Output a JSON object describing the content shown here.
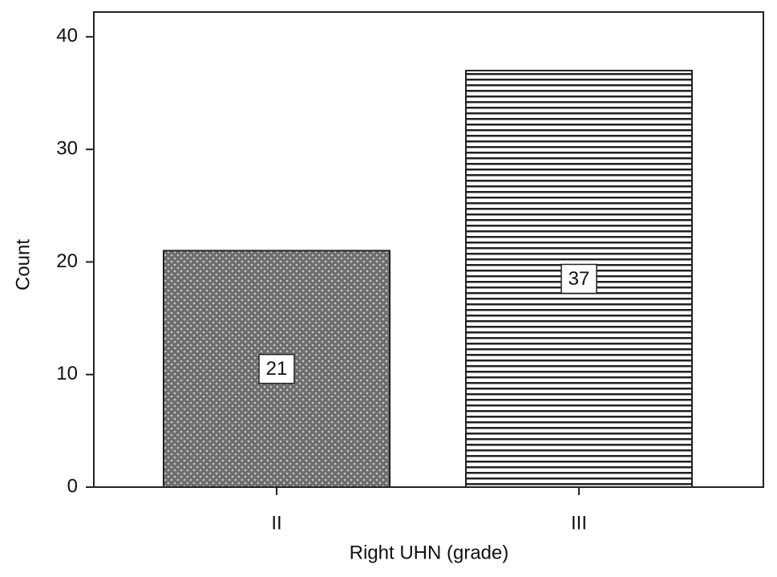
{
  "chart_data": {
    "type": "bar",
    "x_label": "Right UHN (grade)",
    "y_label": "Count",
    "categories": [
      "II",
      "III"
    ],
    "values": [
      21,
      37
    ],
    "patterns": [
      "dots",
      "horizontal-lines"
    ],
    "ylim": [
      0,
      42.2
    ],
    "yticks": [
      0,
      10,
      20,
      30,
      40
    ],
    "grid": false,
    "data_labels": true
  }
}
